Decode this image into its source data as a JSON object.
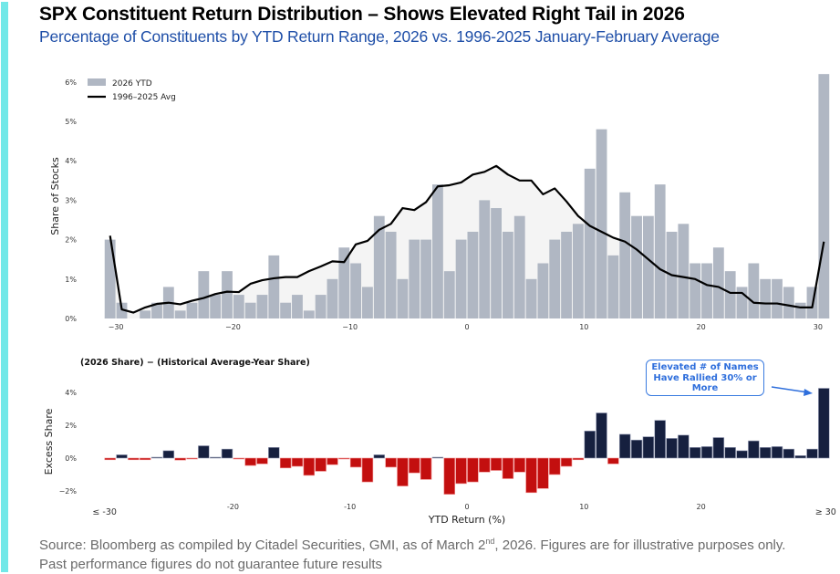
{
  "header": {
    "title": "SPX Constituent Return Distribution – Shows Elevated Right Tail in 2026",
    "subtitle": "Percentage of Constituents by YTD Return Range, 2026 vs. 1996-2025 January-February Average"
  },
  "footer": {
    "line1_pre": "Source: Bloomberg as compiled by Citadel Securities, GMI, as of March 2",
    "line1_sup": "nd",
    "line1_post": ", 2026. Figures are for illustrative purposes only.",
    "line2": "Past performance figures do not guarantee future results"
  },
  "colors": {
    "accent": "#72e8e8",
    "bar_2026": "#b0b7c3",
    "avg_line": "#000000",
    "avg_fill": "#f4f4f4",
    "positive_excess": "#16203f",
    "negative_excess": "#c30f0f",
    "annotation": "#2f6fdc"
  },
  "chart_data": [
    {
      "type": "bar",
      "title": "",
      "xlabel": "",
      "ylabel": "Share of Stocks",
      "bin_left_edges": [
        -31,
        -30,
        -29,
        -28,
        -27,
        -26,
        -25,
        -24,
        -23,
        -22,
        -21,
        -20,
        -19,
        -18,
        -17,
        -16,
        -15,
        -14,
        -13,
        -12,
        -11,
        -10,
        -9,
        -8,
        -7,
        -6,
        -5,
        -4,
        -3,
        -2,
        -1,
        0,
        1,
        2,
        3,
        4,
        5,
        6,
        7,
        8,
        9,
        10,
        11,
        12,
        13,
        14,
        15,
        16,
        17,
        18,
        19,
        20,
        21,
        22,
        23,
        24,
        25,
        26,
        27,
        28,
        29,
        30
      ],
      "series": [
        {
          "name": "2026 YTD",
          "kind": "bar",
          "values": [
            2.0,
            0.4,
            0.0,
            0.2,
            0.4,
            0.8,
            0.2,
            0.4,
            1.2,
            0.6,
            1.2,
            0.6,
            0.4,
            0.6,
            1.6,
            0.4,
            0.6,
            0.2,
            0.6,
            1.0,
            1.8,
            1.4,
            0.8,
            2.6,
            2.2,
            1.0,
            2.0,
            2.0,
            3.4,
            1.2,
            2.0,
            2.2,
            3.0,
            2.8,
            2.2,
            2.6,
            1.0,
            1.4,
            2.0,
            2.2,
            2.4,
            3.8,
            4.8,
            1.6,
            3.2,
            2.6,
            2.6,
            3.4,
            2.2,
            2.4,
            1.4,
            1.4,
            1.8,
            1.2,
            0.8,
            1.4,
            1.0,
            1.0,
            0.8,
            0.4,
            0.8,
            6.2
          ]
        },
        {
          "name": "1996–2025 Avg",
          "kind": "line",
          "values": [
            2.1,
            0.23,
            0.15,
            0.28,
            0.37,
            0.4,
            0.36,
            0.45,
            0.52,
            0.62,
            0.68,
            0.67,
            0.88,
            0.97,
            1.02,
            1.05,
            1.05,
            1.2,
            1.32,
            1.45,
            1.43,
            1.88,
            1.97,
            2.25,
            2.4,
            2.8,
            2.75,
            2.95,
            3.35,
            3.38,
            3.45,
            3.65,
            3.72,
            3.87,
            3.65,
            3.5,
            3.5,
            3.15,
            3.3,
            2.97,
            2.6,
            2.35,
            2.2,
            2.05,
            1.95,
            1.75,
            1.5,
            1.25,
            1.1,
            1.05,
            1.0,
            0.85,
            0.8,
            0.65,
            0.65,
            0.4,
            0.38,
            0.38,
            0.33,
            0.28,
            0.28,
            1.95
          ]
        }
      ],
      "xticks": [
        -30,
        -20,
        -10,
        0,
        10,
        20,
        30
      ],
      "xtick_labels": [
        "−30",
        "−20",
        "−10",
        "0",
        "10",
        "20",
        "30"
      ],
      "yticks": [
        0,
        1,
        2,
        3,
        4,
        5,
        6
      ],
      "ytick_labels": [
        "0%",
        "1%",
        "2%",
        "3%",
        "4%",
        "5%",
        "6%"
      ],
      "xlim": [
        -31.5,
        31.3
      ],
      "ylim": [
        0,
        6.05
      ],
      "legend": [
        "2026 YTD",
        "1996–2025 Avg"
      ],
      "legend_position": "top-left",
      "grid": false
    },
    {
      "type": "bar",
      "title": "(2026 Share) − (Historical Average-Year Share)",
      "xlabel": "YTD Return (%)",
      "ylabel": "Excess Share",
      "bin_left_edges": [
        -31,
        -30,
        -29,
        -28,
        -27,
        -26,
        -25,
        -24,
        -23,
        -22,
        -21,
        -20,
        -19,
        -18,
        -17,
        -16,
        -15,
        -14,
        -13,
        -12,
        -11,
        -10,
        -9,
        -8,
        -7,
        -6,
        -5,
        -4,
        -3,
        -2,
        -1,
        0,
        1,
        2,
        3,
        4,
        5,
        6,
        7,
        8,
        9,
        10,
        11,
        12,
        13,
        14,
        15,
        16,
        17,
        18,
        19,
        20,
        21,
        22,
        23,
        24,
        25,
        26,
        27,
        28,
        29,
        30
      ],
      "values": [
        -0.1,
        0.2,
        -0.1,
        -0.1,
        0.05,
        0.45,
        -0.12,
        -0.05,
        0.75,
        0.0,
        0.55,
        -0.05,
        -0.45,
        -0.35,
        0.65,
        -0.6,
        -0.5,
        -1.05,
        -0.8,
        -0.4,
        -0.05,
        -0.55,
        -1.45,
        0.2,
        -0.55,
        -1.7,
        -0.9,
        -1.3,
        0.05,
        -2.2,
        -1.55,
        -1.45,
        -0.85,
        -0.75,
        -1.25,
        -0.85,
        -2.1,
        -1.85,
        -1.0,
        -0.5,
        -0.1,
        1.65,
        2.75,
        -0.35,
        1.45,
        1.1,
        1.3,
        2.3,
        1.2,
        1.4,
        0.65,
        0.7,
        1.25,
        0.65,
        0.45,
        1.05,
        0.65,
        0.7,
        0.55,
        0.15,
        0.55,
        4.25
      ],
      "xticks": [
        -30.5,
        -20,
        -10,
        0,
        10,
        20,
        30.5
      ],
      "xtick_labels": [
        "≤ -30",
        "-20",
        "-10",
        "0",
        "10",
        "20",
        "≥ 30"
      ],
      "yticks": [
        -2,
        0,
        2,
        4
      ],
      "ytick_labels": [
        "−2%",
        "0%",
        "2%",
        "4%"
      ],
      "ylim": [
        -2.6,
        4.6
      ],
      "annotation": {
        "text_lines": [
          "Elevated # of Names",
          "Have Rallied 30% or",
          "More"
        ],
        "points_to": 30
      },
      "grid": false
    }
  ]
}
